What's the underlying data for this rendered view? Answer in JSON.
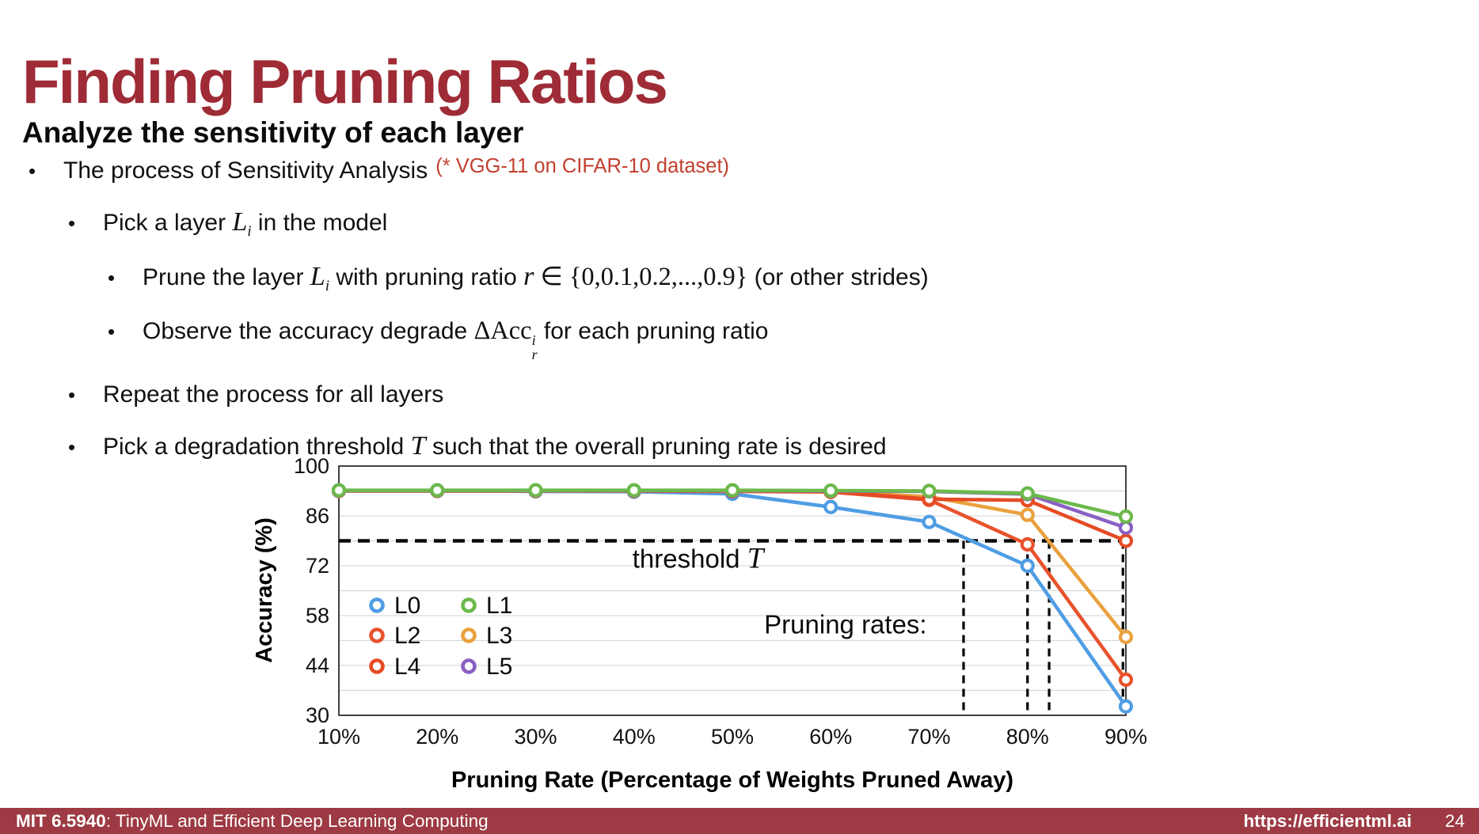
{
  "slide": {
    "title": "Finding Pruning Ratios",
    "subtitle": "Analyze the sensitivity of each layer",
    "title_color": "#9e2b36",
    "note_color": "#c2402f",
    "bullets": [
      {
        "level": 1,
        "segments": [
          {
            "t": "t",
            "v": "The process of Sensitivity Analysis"
          },
          {
            "t": "note",
            "v": "(* VGG-11 on CIFAR-10 dataset)"
          }
        ]
      },
      {
        "level": 2,
        "segments": [
          {
            "t": "t",
            "v": "Pick a layer "
          },
          {
            "t": "m",
            "v": "L"
          },
          {
            "t": "sub",
            "v": "i"
          },
          {
            "t": "t",
            "v": " in the model"
          }
        ]
      },
      {
        "level": 3,
        "segments": [
          {
            "t": "t",
            "v": "Prune the layer "
          },
          {
            "t": "m",
            "v": "L"
          },
          {
            "t": "sub",
            "v": "i"
          },
          {
            "t": "t",
            "v": " with pruning ratio "
          },
          {
            "t": "m",
            "v": "r"
          },
          {
            "t": "mr",
            "v": " ∈ {0,0.1,0.2,...,0.9}"
          },
          {
            "t": "t",
            "v": " (or other strides)"
          }
        ]
      },
      {
        "level": 3,
        "segments": [
          {
            "t": "t",
            "v": "Observe the accuracy degrade  "
          },
          {
            "t": "mr",
            "v": "ΔAcc"
          },
          {
            "t": "supsub",
            "sup": "i",
            "sub": "r"
          },
          {
            "t": "t",
            "v": " for each pruning ratio"
          }
        ]
      },
      {
        "level": 2,
        "segments": [
          {
            "t": "t",
            "v": "Repeat the process for all layers"
          }
        ]
      },
      {
        "level": 2,
        "segments": [
          {
            "t": "t",
            "v": "Pick a degradation threshold "
          },
          {
            "t": "m",
            "v": "T"
          },
          {
            "t": "t",
            "v": " such that the overall pruning rate is desired"
          }
        ]
      }
    ]
  },
  "chart_data": {
    "type": "line",
    "x_tick_labels": [
      "10%",
      "20%",
      "30%",
      "40%",
      "50%",
      "60%",
      "70%",
      "80%",
      "90%"
    ],
    "x_percent": [
      10,
      20,
      30,
      40,
      50,
      60,
      70,
      80,
      90
    ],
    "xlim": [
      10,
      90
    ],
    "ylim": [
      30,
      100
    ],
    "yticks": [
      100,
      86,
      72,
      58,
      44,
      30
    ],
    "grid_step": 7,
    "grid": true,
    "xlabel": "Pruning Rate (Percentage of Weights Pruned Away)",
    "ylabel": "Accuracy (%)",
    "series": [
      {
        "name": "L0",
        "color": "#4f9de4",
        "values": [
          93,
          93,
          92.9,
          92.8,
          92.2,
          88.5,
          84.3,
          72,
          32.5
        ]
      },
      {
        "name": "L1",
        "color": "#6cb94c",
        "values": [
          93.2,
          93.2,
          93.2,
          93.2,
          93.2,
          93.1,
          93,
          92.3,
          85.8
        ]
      },
      {
        "name": "L2",
        "color": "#e8522c",
        "values": [
          93,
          93,
          93,
          93,
          92.9,
          92.7,
          90.5,
          78,
          40
        ]
      },
      {
        "name": "L3",
        "color": "#eaa13d",
        "values": [
          93.1,
          93.1,
          93.1,
          93.1,
          93,
          92.8,
          91.4,
          86.3,
          52
        ]
      },
      {
        "name": "L4",
        "color": "#e64b24",
        "values": [
          93.1,
          93.1,
          93.1,
          93.1,
          93,
          92.9,
          90.7,
          90.4,
          79
        ]
      },
      {
        "name": "L5",
        "color": "#8961c3",
        "values": [
          93.15,
          93.15,
          93.15,
          93.15,
          93.1,
          93,
          92.9,
          92.1,
          82.7
        ]
      }
    ],
    "threshold": {
      "y": 79,
      "label": "threshold",
      "label_math": "T",
      "label_x_pct": 46.5,
      "label_y": 71.5
    },
    "pruning_rates": {
      "label": "Pruning rates:",
      "x_pct": 61.5,
      "y": 53,
      "vlines_pct": [
        73.5,
        80,
        82.2,
        89.7
      ]
    },
    "legend": {
      "entries": [
        "L0",
        "L1",
        "L2",
        "L3",
        "L4",
        "L5"
      ],
      "position": "inside-lower-left",
      "columns": 2
    },
    "marker": "open-circle"
  },
  "footer": {
    "course_bold": "MIT 6.5940",
    "course_rest": ": TinyML and Efficient Deep Learning Computing",
    "url": "https://efficientml.ai",
    "page": "24",
    "bg_color": "#9d3a43"
  }
}
